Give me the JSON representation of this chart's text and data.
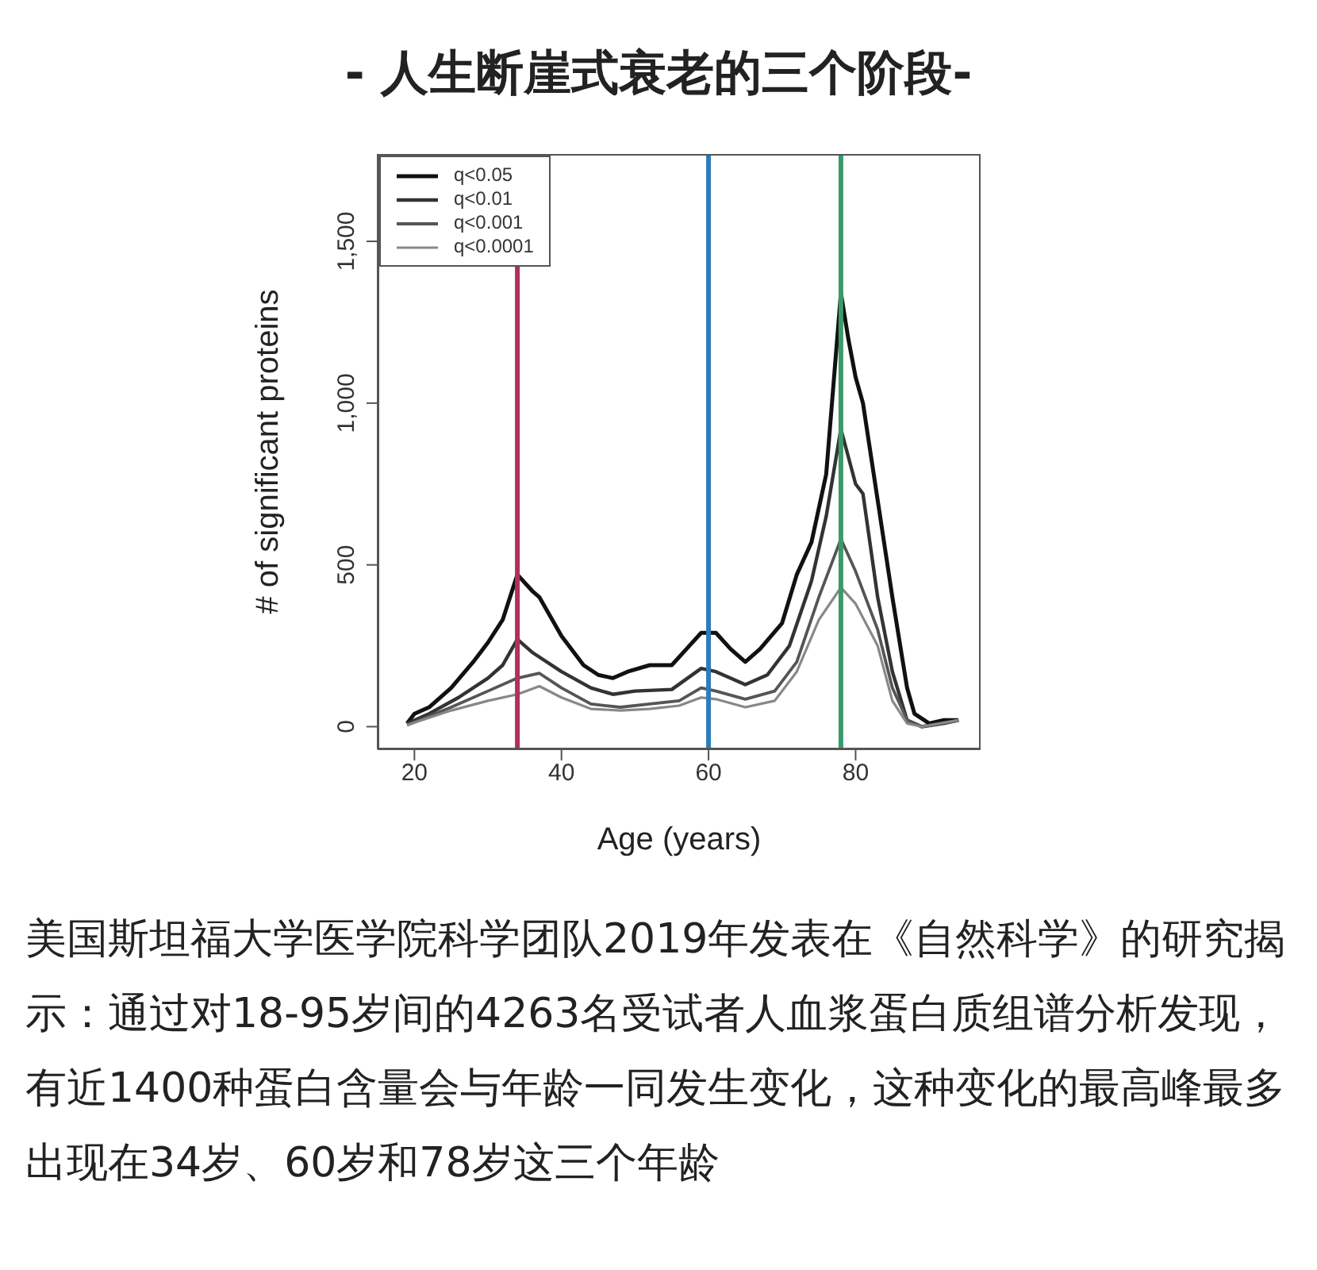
{
  "chart_data": {
    "type": "line",
    "title": "- 人生断崖式衰老的三个阶段-",
    "xlabel": "Age (years)",
    "ylabel": "# of significant proteins",
    "xlim": [
      15,
      97
    ],
    "xticks": [
      20,
      40,
      60,
      80
    ],
    "ylim": [
      -70,
      1770
    ],
    "yticks": [
      0,
      500,
      {
        "value": 1000,
        "label": "1,000"
      },
      {
        "value": 1500,
        "label": "1,500"
      }
    ],
    "grid": false,
    "legend": "top left",
    "marker": "none",
    "line_style": "solid",
    "series": [
      {
        "name": "q<0.05",
        "color": "#111111",
        "x": [
          19,
          20,
          22,
          25,
          28,
          30,
          32,
          34,
          36,
          37,
          40,
          43,
          45,
          47,
          49,
          52,
          55,
          57,
          59,
          61,
          63,
          65,
          67,
          70,
          72,
          74,
          76,
          78,
          79,
          80,
          81,
          83,
          85,
          87,
          88,
          90,
          92,
          94
        ],
        "values": [
          10,
          40,
          60,
          120,
          200,
          260,
          330,
          470,
          420,
          400,
          280,
          190,
          160,
          150,
          170,
          190,
          190,
          240,
          290,
          290,
          240,
          200,
          240,
          320,
          470,
          570,
          780,
          1340,
          1200,
          1080,
          1000,
          700,
          400,
          120,
          40,
          10,
          20,
          20
        ]
      },
      {
        "name": "q<0.01",
        "color": "#333333",
        "x": [
          19,
          22,
          26,
          30,
          32,
          34,
          36,
          40,
          44,
          47,
          50,
          55,
          59,
          61,
          65,
          68,
          71,
          74,
          76,
          78,
          80,
          81,
          83,
          85,
          87,
          89,
          92,
          94
        ],
        "values": [
          10,
          40,
          90,
          150,
          190,
          270,
          230,
          170,
          120,
          100,
          110,
          115,
          180,
          170,
          130,
          160,
          250,
          450,
          650,
          920,
          750,
          720,
          400,
          170,
          20,
          0,
          10,
          20
        ]
      },
      {
        "name": "q<0.001",
        "color": "#555555",
        "x": [
          19,
          25,
          30,
          34,
          37,
          40,
          44,
          48,
          52,
          56,
          59,
          61,
          65,
          69,
          72,
          75,
          78,
          80,
          83,
          85,
          87,
          89,
          94
        ],
        "values": [
          5,
          60,
          110,
          150,
          165,
          120,
          70,
          60,
          70,
          80,
          120,
          110,
          85,
          110,
          200,
          400,
          580,
          480,
          300,
          120,
          20,
          0,
          20
        ]
      },
      {
        "name": "q<0.0001",
        "color": "#888888",
        "x": [
          19,
          25,
          30,
          34,
          37,
          40,
          44,
          48,
          52,
          56,
          59,
          61,
          65,
          69,
          72,
          75,
          78,
          80,
          83,
          85,
          87,
          89,
          94
        ],
        "values": [
          5,
          50,
          80,
          100,
          125,
          90,
          55,
          50,
          55,
          65,
          90,
          85,
          60,
          80,
          170,
          330,
          430,
          380,
          250,
          80,
          10,
          0,
          20
        ]
      }
    ],
    "ref_lines": [
      {
        "axis": "x",
        "value": 34,
        "color": "#b03060"
      },
      {
        "axis": "x",
        "value": 60,
        "color": "#2a7db8"
      },
      {
        "axis": "x",
        "value": 78,
        "color": "#3a9a6a"
      }
    ],
    "annotations": [
      "美国斯坦福大学医学院科学团队2019年发表在《自然科学》的研究揭示：通过对18-95岁间的4263名受试者人血浆蛋白质组谱分析发现，有近1400种蛋白含量会与年龄一同发生变化，这种变化的最高峰最多出现在34岁、60岁和78岁这三个年龄"
    ]
  }
}
